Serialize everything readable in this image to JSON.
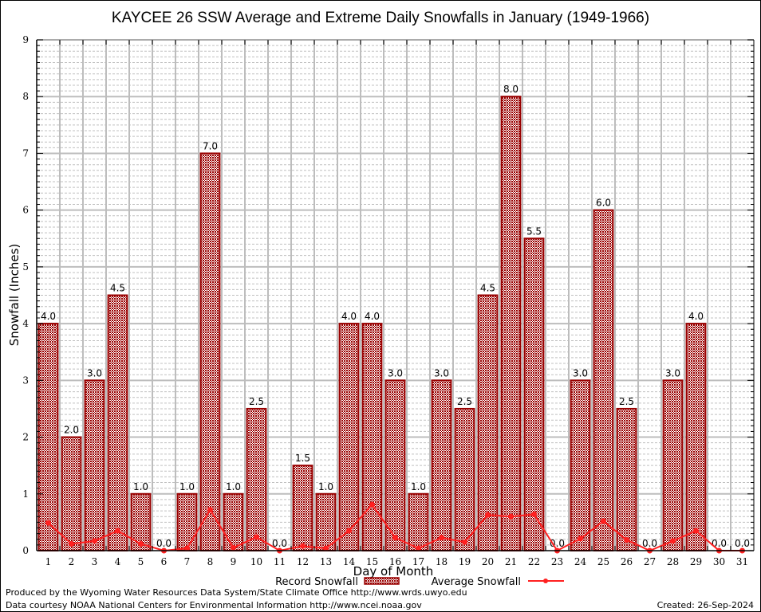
{
  "chart_data": {
    "type": "bar",
    "title": "KAYCEE 26 SSW Average and Extreme Daily Snowfalls in January (1949-1966)",
    "xlabel": "Day of Month",
    "ylabel": "Snowfall (Inches)",
    "ylim": [
      0,
      9
    ],
    "yticks": [
      "0",
      "1",
      "2",
      "3",
      "4",
      "5",
      "6",
      "7",
      "8",
      "9"
    ],
    "grid": true,
    "legend_position": "bottom-center",
    "categories": [
      "1",
      "2",
      "3",
      "4",
      "5",
      "6",
      "7",
      "8",
      "9",
      "10",
      "11",
      "12",
      "13",
      "14",
      "15",
      "16",
      "17",
      "18",
      "19",
      "20",
      "21",
      "22",
      "23",
      "24",
      "25",
      "26",
      "27",
      "28",
      "29",
      "30",
      "31"
    ],
    "series": [
      {
        "name": "Record Snowfall",
        "type": "bar",
        "color": "#990000",
        "values": [
          4.0,
          2.0,
          3.0,
          4.5,
          1.0,
          0.0,
          1.0,
          7.0,
          1.0,
          2.5,
          0.0,
          1.5,
          1.0,
          4.0,
          4.0,
          3.0,
          1.0,
          3.0,
          2.5,
          4.5,
          8.0,
          5.5,
          0.0,
          3.0,
          6.0,
          2.5,
          0.0,
          3.0,
          4.0,
          0.0,
          0.0
        ],
        "labels": [
          "4.0",
          "2.0",
          "3.0",
          "4.5",
          "1.0",
          "0.0",
          "1.0",
          "7.0",
          "1.0",
          "2.5",
          "0.0",
          "1.5",
          "1.0",
          "4.0",
          "4.0",
          "3.0",
          "1.0",
          "3.0",
          "2.5",
          "4.5",
          "8.0",
          "5.5",
          "0.0",
          "3.0",
          "6.0",
          "2.5",
          "0.0",
          "3.0",
          "4.0",
          "0.0",
          "0.0"
        ]
      },
      {
        "name": "Average Snowfall",
        "type": "line",
        "color": "#ff2020",
        "values": [
          0.49,
          0.12,
          0.17,
          0.35,
          0.12,
          0.0,
          0.04,
          0.72,
          0.05,
          0.24,
          0.0,
          0.08,
          0.04,
          0.35,
          0.81,
          0.23,
          0.04,
          0.23,
          0.15,
          0.63,
          0.6,
          0.64,
          0.0,
          0.21,
          0.52,
          0.19,
          0.0,
          0.17,
          0.35,
          0.0,
          0.0
        ]
      }
    ]
  },
  "footer": {
    "line1": "Produced by the Wyoming Water Resources Data System/State Climate Office http://www.wrds.uwyo.edu",
    "line2": "Data courtesy NOAA National Centers for Environmental Information http://www.ncei.noaa.gov",
    "created": "Created: 26-Sep-2024"
  }
}
